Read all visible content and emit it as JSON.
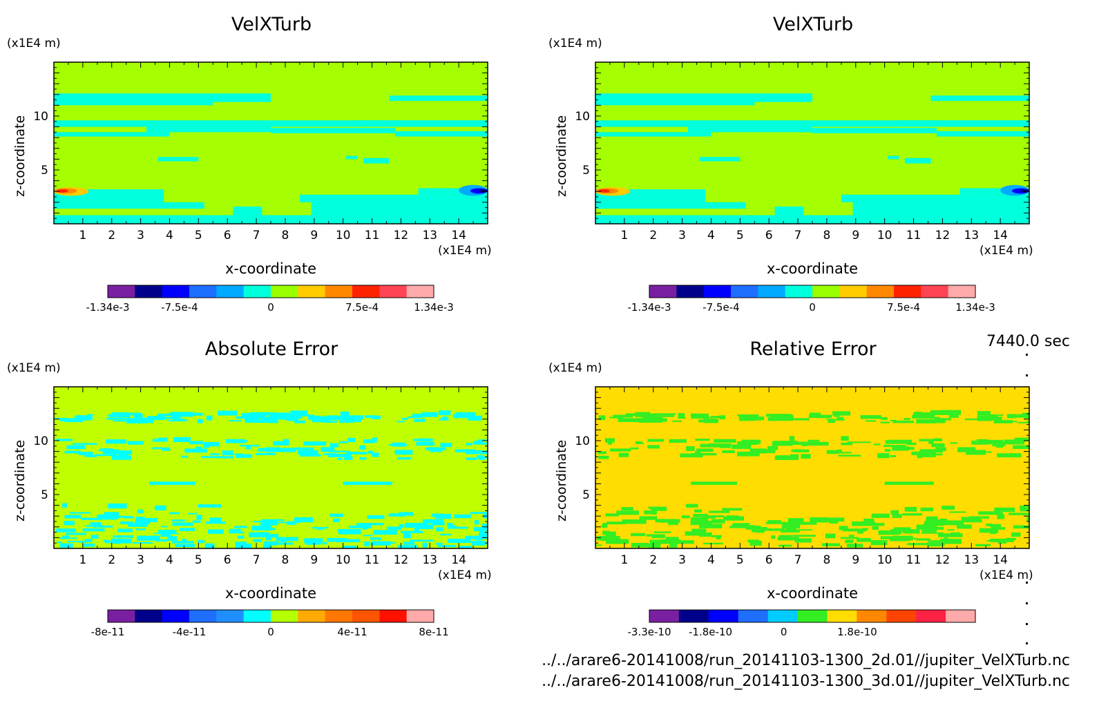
{
  "chart_data": [
    {
      "type": "heatmap",
      "title": "VelXTurb",
      "xlabel": "x-coordinate",
      "ylabel": "z-coordinate",
      "x_unit": "(x1E4 m)",
      "y_unit": "(x1E4 m)",
      "xlim": [
        0,
        15
      ],
      "ylim": [
        0,
        15
      ],
      "x_ticks": [
        "1",
        "2",
        "3",
        "4",
        "5",
        "6",
        "7",
        "8",
        "9",
        "10",
        "11",
        "12",
        "13",
        "14"
      ],
      "y_ticks": [
        "5",
        "10"
      ],
      "colorbar": {
        "colors": [
          "#7a1fa2",
          "#00008b",
          "#0000ff",
          "#1e6fff",
          "#00aaff",
          "#00ffdd",
          "#99ff00",
          "#ffcc00",
          "#ff8800",
          "#ff2200",
          "#ff4455",
          "#ffaaaa"
        ],
        "labels": [
          "-1.34e-3",
          "-7.5e-4",
          "0",
          "7.5e-4",
          "1.34e-3"
        ],
        "values": [
          -0.00134,
          -0.00075,
          0,
          0.00075,
          0.00134
        ]
      },
      "background": "#a6ff00",
      "features": "turbulent layers near z=1.1e5, 0.9e5, 0.5e5 and below 0.3e5 m; positive peak near x=0.1e4,z=3e4; negative peak near x=14.5e4,z=3e4"
    },
    {
      "type": "heatmap",
      "title": "VelXTurb",
      "xlabel": "x-coordinate",
      "ylabel": "z-coordinate",
      "x_unit": "(x1E4 m)",
      "y_unit": "(x1E4 m)",
      "xlim": [
        0,
        15
      ],
      "ylim": [
        0,
        15
      ],
      "x_ticks": [
        "1",
        "2",
        "3",
        "4",
        "5",
        "6",
        "7",
        "8",
        "9",
        "10",
        "11",
        "12",
        "13",
        "14"
      ],
      "y_ticks": [
        "5",
        "10"
      ],
      "colorbar": {
        "colors": [
          "#7a1fa2",
          "#00008b",
          "#0000ff",
          "#1e6fff",
          "#00aaff",
          "#00ffdd",
          "#99ff00",
          "#ffcc00",
          "#ff8800",
          "#ff2200",
          "#ff4455",
          "#ffaaaa"
        ],
        "labels": [
          "-1.34e-3",
          "-7.5e-4",
          "0",
          "7.5e-4",
          "1.34e-3"
        ],
        "values": [
          -0.00134,
          -0.00075,
          0,
          0.00075,
          0.00134
        ]
      },
      "background": "#a6ff00"
    },
    {
      "type": "heatmap",
      "title": "Absolute Error",
      "xlabel": "x-coordinate",
      "ylabel": "z-coordinate",
      "x_unit": "(x1E4 m)",
      "y_unit": "(x1E4 m)",
      "xlim": [
        0,
        15
      ],
      "ylim": [
        0,
        15
      ],
      "x_ticks": [
        "1",
        "2",
        "3",
        "4",
        "5",
        "6",
        "7",
        "8",
        "9",
        "10",
        "11",
        "12",
        "13",
        "14"
      ],
      "y_ticks": [
        "5",
        "10"
      ],
      "colorbar": {
        "colors": [
          "#7a1fa2",
          "#00008b",
          "#0000ff",
          "#1e6fff",
          "#1f8fff",
          "#00ffff",
          "#b5ff00",
          "#ffaa00",
          "#ff7700",
          "#ff5500",
          "#ff1100",
          "#ffaaaa"
        ],
        "labels": [
          "-8e-11",
          "-4e-11",
          "0",
          "4e-11",
          "8e-11"
        ],
        "values": [
          -8e-11,
          -4e-11,
          0,
          4e-11,
          8e-11
        ]
      },
      "background": "#bfff00"
    },
    {
      "type": "heatmap",
      "title": "Relative Error",
      "xlabel": "x-coordinate",
      "ylabel": "z-coordinate",
      "x_unit": "(x1E4 m)",
      "y_unit": "(x1E4 m)",
      "xlim": [
        0,
        15
      ],
      "ylim": [
        0,
        15
      ],
      "x_ticks": [
        "1",
        "2",
        "3",
        "4",
        "5",
        "6",
        "7",
        "8",
        "9",
        "10",
        "11",
        "12",
        "13",
        "14"
      ],
      "y_ticks": [
        "5",
        "10"
      ],
      "colorbar": {
        "colors": [
          "#7a1fa2",
          "#00008b",
          "#0000ff",
          "#1e6fff",
          "#00ccff",
          "#33ee22",
          "#ffdd00",
          "#ff8800",
          "#ff4400",
          "#ff2244",
          "#ffaaaa"
        ],
        "labels": [
          "-3.3e-10",
          "-1.8e-10",
          "0",
          "1.8e-10"
        ],
        "values": [
          -3.3e-10,
          -1.8e-10,
          0,
          1.8e-10
        ]
      },
      "background": "#ffdd00"
    }
  ],
  "timestamp": "7440.0 sec",
  "files": [
    "../../arare6-20141008/run_20141103-1300_2d.01//jupiter_VelXTurb.nc",
    "../../arare6-20141008/run_20141103-1300_3d.01//jupiter_VelXTurb.nc"
  ]
}
